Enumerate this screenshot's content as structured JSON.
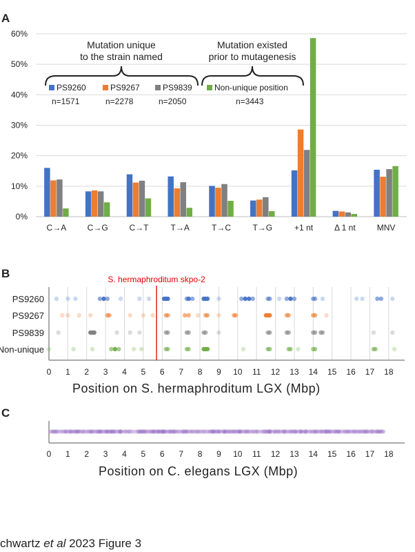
{
  "caption": {
    "author_prefix": "chwartz ",
    "et_al": "et al",
    "suffix": " 2023 Figure 3"
  },
  "chart_data": [
    {
      "panel": "A",
      "type": "bar",
      "categories": [
        "C→A",
        "C→G",
        "C→T",
        "T→A",
        "T→C",
        "T→G",
        "+1 nt",
        "Δ 1 nt",
        "MNV"
      ],
      "series": [
        {
          "name": "PS9260",
          "color": "#4472c4",
          "values": [
            16.0,
            8.3,
            13.9,
            13.2,
            10.1,
            5.3,
            15.2,
            1.9,
            15.4
          ]
        },
        {
          "name": "PS9267",
          "color": "#ed7d31",
          "values": [
            11.9,
            8.6,
            11.2,
            9.3,
            9.5,
            5.6,
            28.6,
            1.7,
            13.1
          ]
        },
        {
          "name": "PS9839",
          "color": "#808080",
          "values": [
            12.2,
            8.3,
            11.8,
            11.3,
            10.7,
            6.4,
            21.9,
            1.4,
            15.6
          ]
        },
        {
          "name": "Non-unique position",
          "color": "#70ad47",
          "values": [
            2.7,
            4.7,
            6.0,
            2.9,
            5.2,
            1.8,
            58.6,
            0.9,
            16.6
          ]
        }
      ],
      "yticks": [
        "0%",
        "10%",
        "20%",
        "30%",
        "40%",
        "50%",
        "60%"
      ],
      "ylim": [
        0,
        60
      ],
      "annotations": {
        "unique_line1": "Mutation unique",
        "unique_line2": "to the strain named",
        "existed_line1": "Mutation existed",
        "existed_line2": "prior to mutagenesis"
      },
      "counts": [
        "n=1571",
        "n=2278",
        "n=2050",
        "n=3443"
      ]
    },
    {
      "panel": "B",
      "type": "scatter",
      "rows": [
        {
          "name": "PS9260",
          "color": "#4472c4",
          "positions": [
            0.4,
            1.0,
            1.4,
            2.7,
            2.9,
            3.1,
            3.8,
            4.8,
            5.3,
            6.1,
            6.2,
            6.3,
            7.3,
            7.4,
            7.6,
            8.2,
            8.3,
            8.4,
            9.0,
            10.2,
            10.4,
            10.6,
            10.8,
            11.6,
            11.7,
            12.2,
            12.6,
            12.8,
            13.0,
            14.0,
            14.1,
            14.5,
            16.3,
            16.6,
            17.4,
            17.6,
            18.2
          ]
        },
        {
          "name": "PS9267",
          "color": "#ed7d31",
          "positions": [
            0.7,
            1.0,
            1.6,
            2.2,
            3.1,
            3.2,
            4.3,
            5.0,
            5.5,
            6.2,
            6.3,
            7.2,
            7.4,
            7.9,
            8.3,
            8.4,
            9.0,
            9.8,
            9.9,
            11.5,
            11.6,
            11.7,
            12.6,
            12.7,
            14.0,
            14.1,
            14.7
          ]
        },
        {
          "name": "PS9839",
          "color": "#808080",
          "positions": [
            0.5,
            2.2,
            2.3,
            2.4,
            3.6,
            4.3,
            4.8,
            6.2,
            6.3,
            7.3,
            7.4,
            8.2,
            8.3,
            9.0,
            11.6,
            11.7,
            12.6,
            12.7,
            14.0,
            14.1,
            14.4,
            14.5,
            17.2,
            18.2
          ]
        },
        {
          "name": "Non-unique",
          "color": "#70ad47",
          "positions": [
            0.0,
            1.3,
            2.3,
            3.3,
            3.5,
            3.7,
            4.5,
            4.9,
            6.2,
            6.3,
            7.3,
            7.4,
            8.2,
            8.3,
            8.4,
            10.3,
            11.6,
            11.7,
            12.7,
            12.8,
            13.2,
            14.0,
            14.1,
            17.2,
            17.3,
            18.3
          ]
        }
      ],
      "marker": {
        "label": "S. hermaphroditum skpo-2",
        "position": 5.7,
        "color": "#e00000"
      },
      "xticks": [
        "0",
        "1",
        "2",
        "3",
        "4",
        "5",
        "6",
        "7",
        "8",
        "9",
        "10",
        "11",
        "12",
        "13",
        "14",
        "15",
        "16",
        "17",
        "18"
      ],
      "xlim": [
        0,
        18.7
      ],
      "xlabel": "Position on S. hermaphroditum LGX (Mbp)"
    },
    {
      "panel": "C",
      "type": "scatter",
      "color": "#8e5fbf",
      "range": [
        0.1,
        17.7
      ],
      "xticks": [
        "0",
        "1",
        "2",
        "3",
        "4",
        "5",
        "6",
        "7",
        "8",
        "9",
        "10",
        "11",
        "12",
        "13",
        "14",
        "15",
        "16",
        "17",
        "18"
      ],
      "xlim": [
        0,
        18.7
      ],
      "xlabel": "Position on C. elegans LGX (Mbp)"
    }
  ]
}
